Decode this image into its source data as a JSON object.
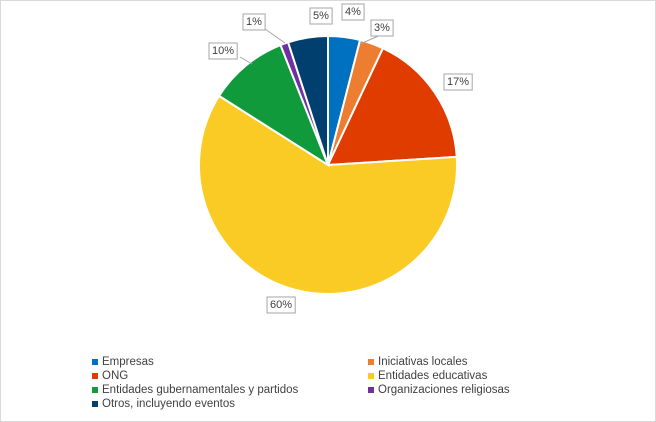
{
  "chart_data": {
    "type": "pie",
    "categories": [
      "Empresas",
      "Iniciativas locales",
      "ONG",
      "Entidades educativas",
      "Entidades gubernamentales y partidos",
      "Organizaciones religiosas",
      "Otros, incluyendo eventos"
    ],
    "values": [
      4,
      3,
      17,
      60,
      10,
      1,
      5
    ],
    "data_labels": [
      "4%",
      "3%",
      "17%",
      "60%",
      "10%",
      "1%",
      "5%"
    ],
    "colors": [
      "#0070c0",
      "#ed7d31",
      "#e03c00",
      "#f9cb24",
      "#109a3c",
      "#7030a0",
      "#003f6e"
    ],
    "legend_position": "bottom",
    "title": ""
  }
}
